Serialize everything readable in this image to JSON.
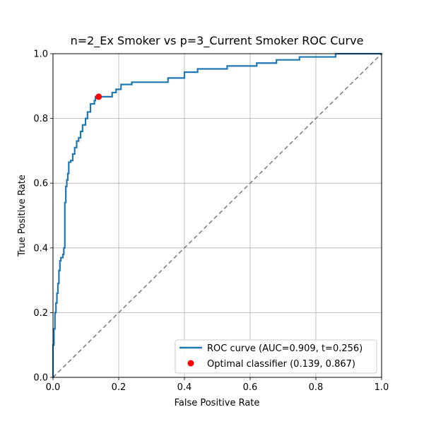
{
  "chart_data": {
    "type": "line",
    "title": "n=2_Ex Smoker vs p=3_Current Smoker ROC Curve",
    "xlabel": "False Positive Rate",
    "ylabel": "True Positive Rate",
    "xlim": [
      0,
      1
    ],
    "ylim": [
      0,
      1
    ],
    "x_ticks": [
      "0.0",
      "0.2",
      "0.4",
      "0.6",
      "0.8",
      "1.0"
    ],
    "y_ticks": [
      "0.0",
      "0.2",
      "0.4",
      "0.6",
      "0.8",
      "1.0"
    ],
    "grid": true,
    "legend_position": "lower-right",
    "series": [
      {
        "name": "ROC curve (AUC=0.909, t=0.256)",
        "color": "#1f77b4",
        "x": [
          0.0,
          0.0,
          0.003,
          0.003,
          0.006,
          0.006,
          0.009,
          0.009,
          0.012,
          0.012,
          0.015,
          0.015,
          0.018,
          0.018,
          0.021,
          0.021,
          0.024,
          0.024,
          0.03,
          0.03,
          0.033,
          0.033,
          0.036,
          0.036,
          0.039,
          0.039,
          0.042,
          0.042,
          0.045,
          0.045,
          0.048,
          0.048,
          0.051,
          0.051,
          0.054,
          0.054,
          0.06,
          0.06,
          0.066,
          0.066,
          0.072,
          0.072,
          0.078,
          0.078,
          0.084,
          0.084,
          0.09,
          0.09,
          0.099,
          0.099,
          0.105,
          0.105,
          0.108,
          0.108,
          0.114,
          0.114,
          0.126,
          0.126,
          0.129,
          0.129,
          0.139,
          0.139,
          0.18,
          0.18,
          0.192,
          0.192,
          0.207,
          0.207,
          0.24,
          0.24,
          0.35,
          0.35,
          0.4,
          0.4,
          0.44,
          0.44,
          0.53,
          0.53,
          0.62,
          0.62,
          0.68,
          0.68,
          0.75,
          0.75,
          0.86,
          0.86,
          1.0
        ],
        "y": [
          0.0,
          0.1,
          0.1,
          0.15,
          0.15,
          0.2,
          0.2,
          0.23,
          0.23,
          0.26,
          0.26,
          0.29,
          0.29,
          0.33,
          0.33,
          0.36,
          0.36,
          0.37,
          0.37,
          0.38,
          0.38,
          0.4,
          0.4,
          0.54,
          0.54,
          0.59,
          0.59,
          0.61,
          0.61,
          0.63,
          0.63,
          0.665,
          0.665,
          0.665,
          0.665,
          0.67,
          0.67,
          0.69,
          0.69,
          0.71,
          0.71,
          0.73,
          0.73,
          0.74,
          0.74,
          0.76,
          0.76,
          0.78,
          0.78,
          0.8,
          0.8,
          0.82,
          0.82,
          0.82,
          0.82,
          0.845,
          0.845,
          0.855,
          0.855,
          0.867,
          0.867,
          0.867,
          0.867,
          0.88,
          0.88,
          0.89,
          0.89,
          0.905,
          0.905,
          0.912,
          0.912,
          0.925,
          0.925,
          0.943,
          0.943,
          0.953,
          0.953,
          0.962,
          0.962,
          0.971,
          0.971,
          0.981,
          0.981,
          0.99,
          0.99,
          1.0,
          1.0
        ]
      }
    ],
    "reference_line": {
      "x": [
        0,
        1
      ],
      "y": [
        0,
        1
      ],
      "color": "#808080",
      "style": "dashed"
    },
    "optimal_point": {
      "name": "Optimal classifier (0.139, 0.867)",
      "x": 0.139,
      "y": 0.867,
      "color": "#ff0000"
    }
  }
}
